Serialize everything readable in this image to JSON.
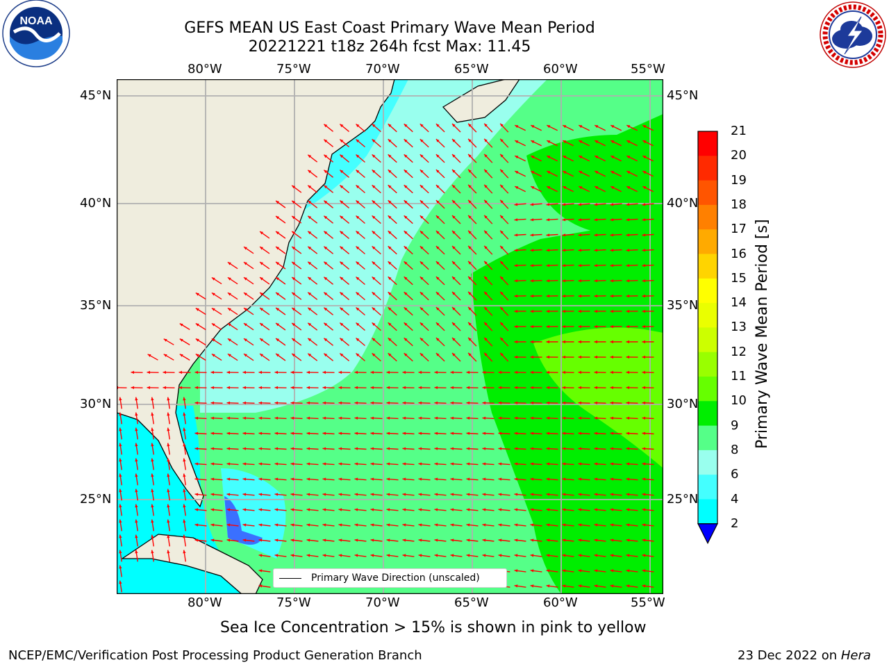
{
  "title": {
    "line1": "GEFS MEAN US East Coast Primary Wave Mean Period",
    "line2": "20221221 t18z 264h fcst   Max: 11.45"
  },
  "logos": {
    "noaa_text": "NOAA",
    "noaa_ring": "NATIONAL OCEANIC AND ATMOSPHERIC ADMINISTRATION · U.S. DEPARTMENT OF COMMERCE",
    "nws_ring": "NATIONAL WEATHER SERVICE"
  },
  "map": {
    "lon_labels": [
      "80°W",
      "75°W",
      "70°W",
      "65°W",
      "60°W",
      "55°W"
    ],
    "lat_labels": [
      "45°N",
      "40°N",
      "35°N",
      "30°N",
      "25°N"
    ],
    "legend_label": "Primary Wave Direction (unscaled)",
    "land_color": "#efedde",
    "arrow_color": "#ff0000"
  },
  "colorbar": {
    "title": "Primary Wave Mean Period [s]",
    "tick_labels": [
      "21",
      "20",
      "19",
      "18",
      "17",
      "16",
      "15",
      "14",
      "13",
      "12",
      "11",
      "10",
      "9",
      "8",
      "6",
      "4",
      "2"
    ],
    "colors": [
      "#ff0000",
      "#ff2a00",
      "#ff5500",
      "#ff8000",
      "#ffaa00",
      "#ffd400",
      "#ffff00",
      "#eaff00",
      "#ccff00",
      "#99ff00",
      "#66ff00",
      "#00ee00",
      "#55ff88",
      "#99ffee",
      "#44ffff",
      "#00ffff",
      "#0099ff",
      "#0044ff",
      "#0000ff"
    ]
  },
  "notes": {
    "sea_ice": "Sea Ice Concentration > 15% is shown in pink to yellow",
    "credit": "NCEP/EMC/Verification Post Processing Product Generation Branch",
    "date": "23 Dec 2022 on ",
    "machine": "Hera"
  }
}
